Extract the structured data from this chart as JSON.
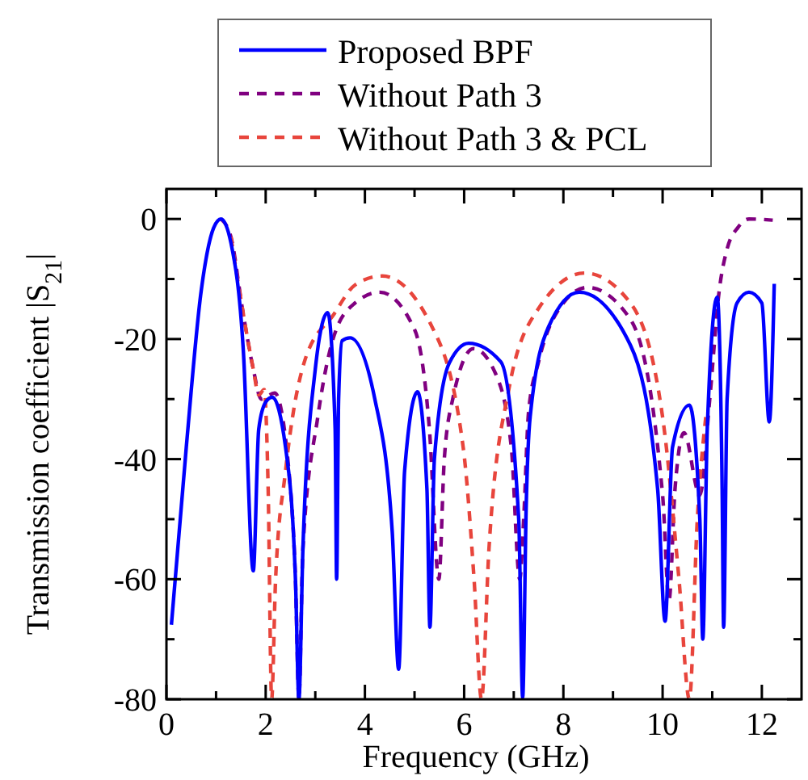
{
  "chart_data": {
    "type": "line",
    "xlabel": "Frequency (GHz)",
    "ylabel": "Transmission coefficient |S$_{21}$|",
    "xlim": [
      0,
      12.8
    ],
    "ylim": [
      -80,
      5
    ],
    "xticks": [
      0,
      {
        "value": 1,
        "label": null
      },
      2,
      {
        "value": 3,
        "label": null
      },
      4,
      {
        "value": 5,
        "label": null
      },
      6,
      {
        "value": 7,
        "label": null
      },
      8,
      {
        "value": 9,
        "label": null
      },
      10,
      {
        "value": 11,
        "label": null
      },
      12
    ],
    "yticks": [
      -80,
      {
        "value": -70,
        "label": null
      },
      -60,
      {
        "value": -50,
        "label": null
      },
      -40,
      {
        "value": -30,
        "label": null
      },
      -20,
      {
        "value": -10,
        "label": null
      },
      0
    ],
    "legend": "top",
    "grid": false,
    "series": [
      {
        "name": "Proposed BPF",
        "color": "#0000ff",
        "line_style": "solid",
        "x": [
          0.1,
          0.4,
          0.7,
          0.95,
          1.1,
          1.3,
          1.55,
          1.75,
          1.86,
          2.0,
          2.13,
          2.4,
          2.6,
          2.67,
          2.75,
          3.0,
          3.25,
          3.4,
          3.43,
          3.47,
          3.54,
          3.7,
          4.2,
          4.55,
          4.68,
          4.8,
          5.06,
          5.25,
          5.31,
          5.4,
          5.7,
          6.09,
          6.74,
          7.1,
          7.18,
          7.25,
          7.33,
          7.7,
          8.32,
          9.35,
          9.9,
          10.05,
          10.2,
          10.54,
          10.75,
          10.81,
          10.9,
          11.1,
          11.2,
          11.23,
          11.3,
          11.5,
          11.74,
          12.0,
          12.15,
          12.25
        ],
        "values": [
          -67.6,
          -38,
          -12,
          -1.5,
          0,
          -4,
          -22,
          -58.6,
          -35,
          -30.5,
          -29.7,
          -38,
          -60,
          -80,
          -55,
          -25,
          -15.6,
          -35,
          -60,
          -30,
          -20.3,
          -19.8,
          -30,
          -52,
          -75,
          -42,
          -28.8,
          -45,
          -68,
          -40,
          -24,
          -20.7,
          -23.8,
          -50,
          -79.7,
          -48,
          -33,
          -18,
          -12.2,
          -21,
          -45,
          -67,
          -38,
          -31,
          -50,
          -70,
          -35,
          -13,
          -45,
          -68,
          -30,
          -14,
          -12.2,
          -14,
          -33.8,
          -10.8
        ]
      },
      {
        "name": "Without Path 3",
        "color": "#800080",
        "line_style": "dashed",
        "x": [
          1.1,
          1.3,
          1.53,
          1.75,
          1.91,
          2.18,
          2.5,
          2.6,
          2.67,
          2.75,
          3.05,
          3.38,
          3.8,
          4.3,
          5.0,
          5.3,
          5.49,
          5.6,
          5.77,
          6.19,
          6.63,
          6.95,
          7.12,
          7.2,
          7.3,
          7.5,
          8.0,
          8.48,
          9.35,
          10.0,
          10.13,
          10.25,
          10.43,
          10.75,
          10.95,
          11.14,
          11.3,
          11.52,
          11.74,
          12.22
        ],
        "values": [
          0,
          -3,
          -14.9,
          -25,
          -30,
          -29,
          -45,
          -60,
          -80,
          -55,
          -33,
          -19.4,
          -14,
          -12.2,
          -18.4,
          -35,
          -60,
          -40,
          -30,
          -21.6,
          -25.7,
          -38,
          -60,
          -50,
          -32,
          -23.8,
          -14,
          -11.4,
          -16.7,
          -46,
          -63.5,
          -45,
          -35.6,
          -46,
          -30,
          -12,
          -5,
          -1.4,
          0,
          -0.2
        ]
      },
      {
        "name": "Without Path 3 & PCL",
        "color": "#e8453c",
        "line_style": "dashed",
        "x": [
          1.3,
          1.53,
          1.75,
          1.86,
          1.97,
          2.05,
          2.12,
          2.2,
          2.4,
          2.78,
          3.38,
          3.8,
          4.35,
          5.33,
          5.98,
          6.2,
          6.35,
          6.5,
          6.9,
          7.5,
          8.43,
          9.35,
          10.0,
          10.33,
          10.54,
          10.7,
          10.87
        ],
        "values": [
          -3,
          -14.9,
          -25,
          -29.3,
          -28.4,
          -45,
          -80,
          -60,
          -42,
          -23.8,
          -15.8,
          -11,
          -9.5,
          -17.6,
          -38,
          -60,
          -80,
          -55,
          -28.4,
          -14.9,
          -9,
          -14,
          -33,
          -60,
          -80,
          -50,
          -33
        ]
      }
    ]
  }
}
